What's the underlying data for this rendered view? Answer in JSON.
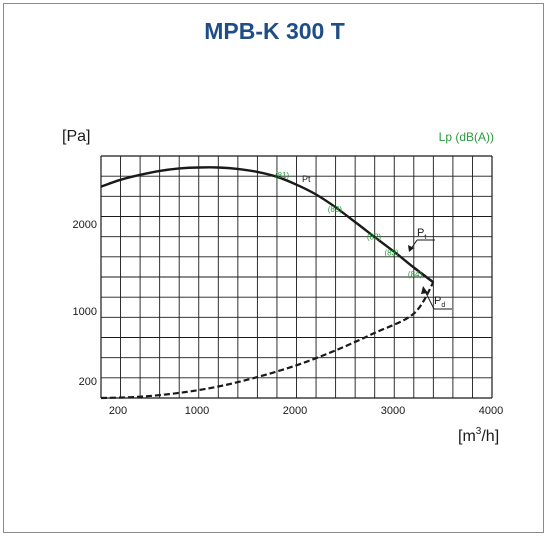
{
  "title": "MPB-K 300 T",
  "chart_data": {
    "type": "line",
    "title": "MPB-K 300 T",
    "ylabel": "[Pa]",
    "xlabel_base": "[m",
    "xlabel_sup": "3",
    "xlabel_tail": "/h]",
    "right_label": "Lp (dB(A))",
    "x_ticks": [
      "200",
      "1000",
      "2000",
      "3000",
      "4000"
    ],
    "y_ticks": [
      "200",
      "1000",
      "2000"
    ],
    "series": [
      {
        "name": "Pt",
        "style": "solid",
        "x": [
          0,
          200,
          400,
          600,
          800,
          1000,
          1200,
          1400,
          1600,
          1800,
          2000,
          2200,
          2400,
          2600,
          2800,
          3000,
          3200,
          3400
        ],
        "y": [
          2380,
          2450,
          2500,
          2540,
          2565,
          2575,
          2575,
          2560,
          2530,
          2480,
          2400,
          2300,
          2170,
          2020,
          1850,
          1680,
          1500,
          1330
        ]
      },
      {
        "name": "Pd",
        "style": "dashed",
        "x": [
          0,
          400,
          800,
          1200,
          1600,
          2000,
          2400,
          2800,
          3200,
          3400
        ],
        "y": [
          0,
          15,
          60,
          135,
          245,
          380,
          550,
          750,
          970,
          1330
        ]
      }
    ],
    "curve_labels": {
      "pt_main": "Pt",
      "pt_sub_base": "P",
      "pt_sub": "t",
      "pd_base": "P",
      "pd_sub": "d"
    },
    "noise_labels": [
      {
        "text": "(81)",
        "x": 1780,
        "y": 2470
      },
      {
        "text": "(83)",
        "x": 2320,
        "y": 2120
      },
      {
        "text": "(82)",
        "x": 2720,
        "y": 1820
      },
      {
        "text": "(83)",
        "x": 2900,
        "y": 1640
      },
      {
        "text": "(84)",
        "x": 3140,
        "y": 1390
      }
    ],
    "colors": {
      "title": "#1f4e86",
      "curve": "#1a1a1a",
      "grid": "#1a1a1a",
      "noise_label": "#2a9a3a"
    },
    "grid": true
  }
}
